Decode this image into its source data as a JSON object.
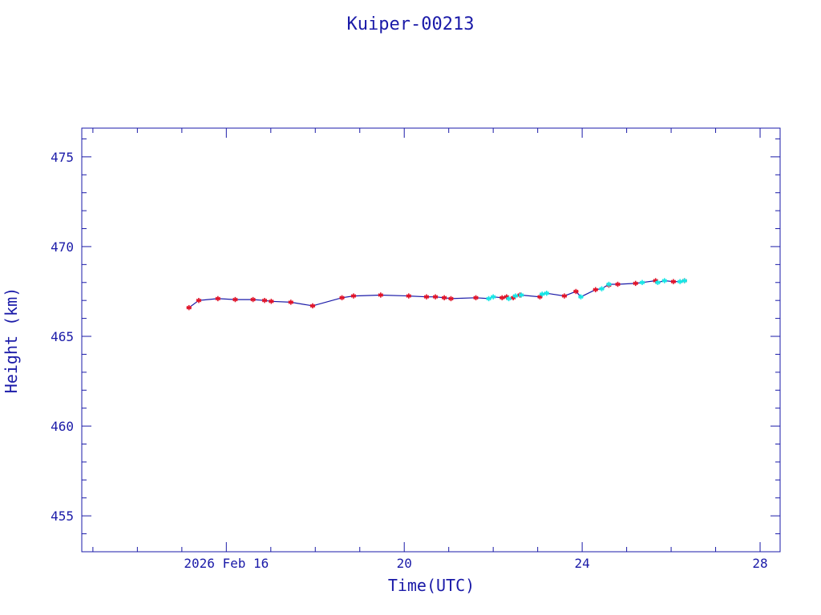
{
  "chart_data": {
    "type": "scatter",
    "title": "Kuiper-00213",
    "xlabel": "Time(UTC)",
    "ylabel": "Height (km)",
    "x_unit": "days (Feb 2026)",
    "xlim": [
      12.75,
      28.45
    ],
    "ylim": [
      453.0,
      476.6
    ],
    "x_ticks": [
      {
        "value": 16,
        "label": "2026 Feb 16"
      },
      {
        "value": 20,
        "label": "20"
      },
      {
        "value": 24,
        "label": "24"
      },
      {
        "value": 28,
        "label": "28"
      }
    ],
    "y_ticks": [
      {
        "value": 455,
        "label": "455"
      },
      {
        "value": 460,
        "label": "460"
      },
      {
        "value": 465,
        "label": "465"
      },
      {
        "value": 470,
        "label": "470"
      },
      {
        "value": 475,
        "label": "475"
      }
    ],
    "grid": false,
    "colors": {
      "axes": "#1a1aa8",
      "line": "#1a1aa8",
      "series_red": "#e0142a",
      "series_cyan": "#18e6e6"
    },
    "series": [
      {
        "marker": "asterisk",
        "color": "red",
        "points": [
          [
            15.16,
            466.6
          ],
          [
            15.38,
            467.0
          ],
          [
            15.81,
            467.1
          ],
          [
            16.2,
            467.05
          ],
          [
            16.6,
            467.05
          ],
          [
            16.86,
            467.0
          ],
          [
            17.01,
            466.95
          ],
          [
            17.45,
            466.9
          ],
          [
            17.94,
            466.7
          ],
          [
            18.6,
            467.15
          ],
          [
            18.86,
            467.25
          ],
          [
            19.47,
            467.3
          ],
          [
            20.1,
            467.25
          ],
          [
            20.5,
            467.2
          ],
          [
            20.7,
            467.2
          ],
          [
            20.9,
            467.15
          ],
          [
            21.05,
            467.1
          ],
          [
            21.61,
            467.15
          ],
          [
            22.2,
            467.15
          ],
          [
            22.3,
            467.2
          ],
          [
            22.45,
            467.15
          ],
          [
            22.6,
            467.3
          ],
          [
            23.05,
            467.2
          ],
          [
            23.6,
            467.25
          ],
          [
            23.86,
            467.5
          ],
          [
            24.3,
            467.6
          ],
          [
            24.6,
            467.85
          ],
          [
            24.8,
            467.9
          ],
          [
            25.2,
            467.95
          ],
          [
            25.65,
            468.1
          ],
          [
            26.05,
            468.05
          ],
          [
            26.3,
            468.1
          ]
        ]
      },
      {
        "marker": "asterisk",
        "color": "cyan",
        "points": [
          [
            21.9,
            467.1
          ],
          [
            22.0,
            467.2
          ],
          [
            22.35,
            467.1
          ],
          [
            22.5,
            467.25
          ],
          [
            22.63,
            467.3
          ],
          [
            23.1,
            467.35
          ],
          [
            23.2,
            467.4
          ],
          [
            23.97,
            467.2
          ],
          [
            24.44,
            467.65
          ],
          [
            24.6,
            467.9
          ],
          [
            25.35,
            468.0
          ],
          [
            25.7,
            468.0
          ],
          [
            25.85,
            468.1
          ],
          [
            26.2,
            468.05
          ],
          [
            26.3,
            468.1
          ]
        ]
      }
    ],
    "line_points": [
      [
        15.16,
        466.6
      ],
      [
        15.38,
        467.0
      ],
      [
        15.81,
        467.1
      ],
      [
        16.2,
        467.05
      ],
      [
        16.6,
        467.05
      ],
      [
        16.86,
        467.0
      ],
      [
        17.01,
        466.95
      ],
      [
        17.45,
        466.9
      ],
      [
        17.94,
        466.7
      ],
      [
        18.6,
        467.15
      ],
      [
        18.86,
        467.25
      ],
      [
        19.47,
        467.3
      ],
      [
        20.1,
        467.25
      ],
      [
        20.5,
        467.2
      ],
      [
        20.7,
        467.2
      ],
      [
        20.9,
        467.15
      ],
      [
        21.05,
        467.1
      ],
      [
        21.61,
        467.15
      ],
      [
        21.9,
        467.1
      ],
      [
        22.0,
        467.2
      ],
      [
        22.2,
        467.15
      ],
      [
        22.3,
        467.2
      ],
      [
        22.35,
        467.1
      ],
      [
        22.45,
        467.15
      ],
      [
        22.5,
        467.25
      ],
      [
        22.6,
        467.3
      ],
      [
        22.63,
        467.3
      ],
      [
        23.05,
        467.2
      ],
      [
        23.1,
        467.35
      ],
      [
        23.2,
        467.4
      ],
      [
        23.6,
        467.25
      ],
      [
        23.86,
        467.5
      ],
      [
        23.97,
        467.2
      ],
      [
        24.3,
        467.6
      ],
      [
        24.44,
        467.65
      ],
      [
        24.6,
        467.9
      ],
      [
        24.8,
        467.9
      ],
      [
        25.2,
        467.95
      ],
      [
        25.35,
        468.0
      ],
      [
        25.65,
        468.1
      ],
      [
        25.7,
        468.0
      ],
      [
        25.85,
        468.1
      ],
      [
        26.05,
        468.05
      ],
      [
        26.2,
        468.05
      ],
      [
        26.3,
        468.1
      ]
    ]
  }
}
